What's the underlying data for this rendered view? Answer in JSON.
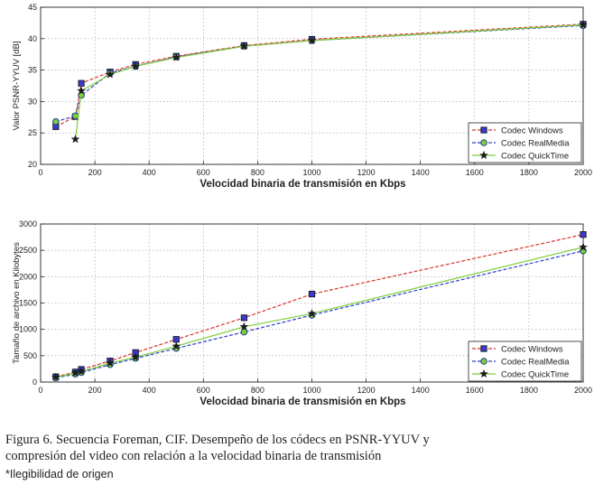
{
  "chart_data": [
    {
      "type": "line",
      "title": "",
      "xlabel": "Velocidad binaria de transmisión en Kbps",
      "ylabel": "Valor PSNR-YYUV [dB]",
      "xlim": [
        0,
        2000
      ],
      "ylim": [
        20,
        45
      ],
      "xticks": [
        "0",
        "200",
        "400",
        "600",
        "800",
        "1000",
        "1200",
        "1400",
        "1600",
        "1800",
        "2000"
      ],
      "yticks": [
        "20",
        "25",
        "30",
        "35",
        "40",
        "45"
      ],
      "grid": true,
      "legend": "bottom-right",
      "series": [
        {
          "name": "Codec Windows",
          "color": "#d9362b",
          "marker": "square",
          "x": [
            56,
            128,
            150,
            256,
            350,
            500,
            750,
            1000,
            2000
          ],
          "y": [
            26.0,
            27.6,
            32.9,
            34.7,
            35.9,
            37.2,
            38.9,
            39.9,
            42.3
          ]
        },
        {
          "name": "Codec RealMedia",
          "color": "#2b3fc8",
          "marker": "circle",
          "x": [
            56,
            128,
            150,
            256,
            350,
            500,
            750,
            1000,
            2000
          ],
          "y": [
            26.8,
            27.7,
            31.0,
            34.5,
            35.6,
            37.1,
            38.8,
            39.7,
            42.1
          ]
        },
        {
          "name": "Codec QuickTime",
          "color": "#7ccf3a",
          "marker": "star",
          "x": [
            128,
            150,
            256,
            350,
            500,
            750,
            1000,
            2000
          ],
          "y": [
            24.0,
            31.7,
            34.3,
            35.6,
            37.0,
            38.8,
            39.7,
            42.2
          ]
        }
      ]
    },
    {
      "type": "line",
      "title": "",
      "xlabel": "Velocidad binaria de transmisión en Kbps",
      "ylabel": "Tamaño de archivo en Kilobytes",
      "xlim": [
        0,
        2000
      ],
      "ylim": [
        0,
        3000
      ],
      "xticks": [
        "0",
        "200",
        "400",
        "600",
        "800",
        "1000",
        "1200",
        "1400",
        "1600",
        "1800",
        "2000"
      ],
      "yticks": [
        "0",
        "500",
        "1000",
        "1500",
        "2000",
        "2500",
        "3000"
      ],
      "grid": true,
      "legend": "bottom-right",
      "series": [
        {
          "name": "Codec Windows",
          "color": "#d9362b",
          "marker": "square",
          "x": [
            56,
            128,
            150,
            256,
            350,
            500,
            750,
            1000,
            2000
          ],
          "y": [
            100,
            190,
            240,
            400,
            560,
            810,
            1220,
            1670,
            2800
          ]
        },
        {
          "name": "Codec RealMedia",
          "color": "#2b3fc8",
          "marker": "circle",
          "x": [
            56,
            128,
            150,
            256,
            350,
            500,
            750,
            1000,
            2000
          ],
          "y": [
            80,
            150,
            180,
            330,
            450,
            640,
            950,
            1270,
            2490
          ]
        },
        {
          "name": "Codec QuickTime",
          "color": "#7ccf3a",
          "marker": "star",
          "x": [
            56,
            128,
            150,
            256,
            350,
            500,
            750,
            1000,
            2000
          ],
          "y": [
            90,
            170,
            200,
            360,
            470,
            680,
            1050,
            1300,
            2560
          ]
        }
      ]
    }
  ],
  "caption": {
    "line1": "Figura 6. Secuencia Foreman, CIF. Desempeño de los códecs en PSNR-YYUV y",
    "line2": "compresión del video con relación a la velocidad binaria de transmisión"
  },
  "note": "*Ilegibilidad de origen"
}
